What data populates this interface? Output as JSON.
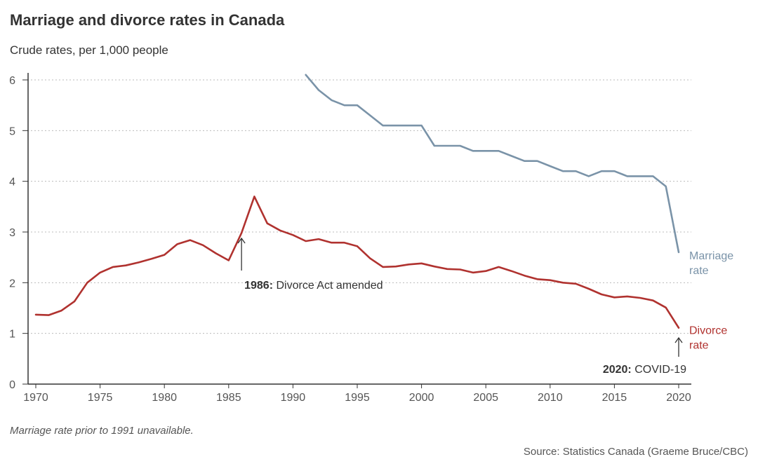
{
  "header": {
    "title": "Marriage and divorce rates in Canada",
    "subtitle": "Crude rates, per 1,000 people"
  },
  "footer": {
    "note": "Marriage rate prior to 1991 unavailable.",
    "source": "Source: Statistics Canada (Graeme Bruce/CBC)"
  },
  "colors": {
    "marriage": "#7a93a8",
    "divorce": "#b0322f",
    "grid": "#bbbbbb",
    "axis": "#333333"
  },
  "chart_data": {
    "type": "line",
    "title": "Marriage and divorce rates in Canada",
    "subtitle": "Crude rates, per 1,000 people",
    "xlabel": "",
    "ylabel": "",
    "xlim": [
      1970,
      2020
    ],
    "ylim": [
      0,
      6
    ],
    "xticks": [
      1970,
      1975,
      1980,
      1985,
      1990,
      1995,
      2000,
      2005,
      2010,
      2015,
      2020
    ],
    "yticks": [
      0,
      1,
      2,
      3,
      4,
      5,
      6
    ],
    "grid": "horizontal dotted",
    "series": [
      {
        "name": "Marriage rate",
        "label_lines": [
          "Marriage",
          "rate"
        ],
        "color": "#7a93a8",
        "x": [
          1991,
          1992,
          1993,
          1994,
          1995,
          1996,
          1997,
          1998,
          1999,
          2000,
          2001,
          2002,
          2003,
          2004,
          2005,
          2006,
          2007,
          2008,
          2009,
          2010,
          2011,
          2012,
          2013,
          2014,
          2015,
          2016,
          2017,
          2018,
          2019,
          2020
        ],
        "values": [
          6.1,
          5.8,
          5.6,
          5.5,
          5.5,
          5.3,
          5.1,
          5.1,
          5.1,
          5.1,
          4.7,
          4.7,
          4.7,
          4.6,
          4.6,
          4.6,
          4.5,
          4.4,
          4.4,
          4.3,
          4.2,
          4.2,
          4.1,
          4.2,
          4.2,
          4.1,
          4.1,
          4.1,
          3.9,
          2.6
        ]
      },
      {
        "name": "Divorce rate",
        "label_lines": [
          "Divorce",
          "rate"
        ],
        "color": "#b0322f",
        "x": [
          1970,
          1971,
          1972,
          1973,
          1974,
          1975,
          1976,
          1977,
          1978,
          1979,
          1980,
          1981,
          1982,
          1983,
          1984,
          1985,
          1986,
          1987,
          1988,
          1989,
          1990,
          1991,
          1992,
          1993,
          1994,
          1995,
          1996,
          1997,
          1998,
          1999,
          2000,
          2001,
          2002,
          2003,
          2004,
          2005,
          2006,
          2007,
          2008,
          2009,
          2010,
          2011,
          2012,
          2013,
          2014,
          2015,
          2016,
          2017,
          2018,
          2019,
          2020
        ],
        "values": [
          1.37,
          1.36,
          1.45,
          1.63,
          2.0,
          2.2,
          2.31,
          2.34,
          2.4,
          2.47,
          2.55,
          2.76,
          2.84,
          2.74,
          2.58,
          2.44,
          2.98,
          3.7,
          3.17,
          3.03,
          2.94,
          2.82,
          2.86,
          2.79,
          2.79,
          2.72,
          2.48,
          2.31,
          2.32,
          2.36,
          2.38,
          2.32,
          2.27,
          2.26,
          2.2,
          2.23,
          2.31,
          2.23,
          2.14,
          2.07,
          2.05,
          2.0,
          1.98,
          1.88,
          1.77,
          1.71,
          1.73,
          1.7,
          1.65,
          1.51,
          1.11
        ]
      }
    ],
    "annotations": [
      {
        "year_bold": "1986:",
        "text": " Divorce Act amended",
        "x": 1986,
        "arrow_to_y": 2.98,
        "position": "below"
      },
      {
        "year_bold": "2020:",
        "text": " COVID-19",
        "x": 2020,
        "arrow_to_y": 1.11,
        "position": "below"
      }
    ]
  }
}
